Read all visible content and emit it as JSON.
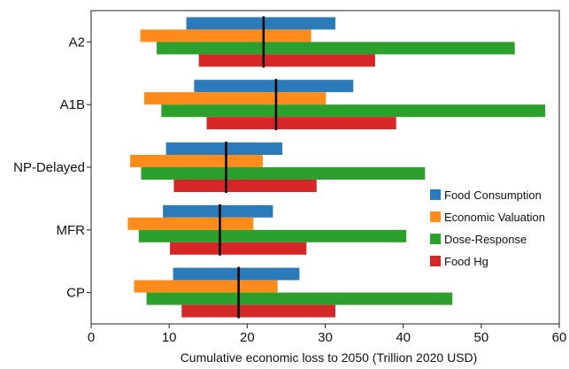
{
  "chart_data": {
    "type": "bar",
    "orientation": "horizontal-range",
    "xlabel": "Cumulative economic loss to 2050 (Trillion 2020 USD)",
    "xlim": [
      0,
      60
    ],
    "xticks": [
      "0",
      "10",
      "20",
      "30",
      "40",
      "50",
      "60"
    ],
    "categories": [
      "A2",
      "A1B",
      "NP-Delayed",
      "MFR",
      "CP"
    ],
    "series": [
      {
        "name": "Food Consumption",
        "color": "#2b7bba",
        "ranges": [
          [
            12.2,
            31.3
          ],
          [
            13.2,
            33.6
          ],
          [
            9.6,
            24.5
          ],
          [
            9.2,
            23.3
          ],
          [
            10.5,
            26.7
          ]
        ]
      },
      {
        "name": "Economic Valuation",
        "color": "#ff8c1a",
        "ranges": [
          [
            6.3,
            28.2
          ],
          [
            6.8,
            30.1
          ],
          [
            5.0,
            22.0
          ],
          [
            4.7,
            20.8
          ],
          [
            5.5,
            23.9
          ]
        ]
      },
      {
        "name": "Dose-Response",
        "color": "#2ca02c",
        "ranges": [
          [
            8.4,
            54.3
          ],
          [
            9.0,
            58.2
          ],
          [
            6.4,
            42.8
          ],
          [
            6.1,
            40.4
          ],
          [
            7.1,
            46.3
          ]
        ]
      },
      {
        "name": "Food Hg",
        "color": "#d62728",
        "ranges": [
          [
            13.8,
            36.4
          ],
          [
            14.8,
            39.1
          ],
          [
            10.6,
            28.9
          ],
          [
            10.1,
            27.6
          ],
          [
            11.6,
            31.3
          ]
        ]
      }
    ],
    "central_estimates": [
      22.1,
      23.7,
      17.3,
      16.5,
      18.9
    ],
    "legend": {
      "placement": "right",
      "entries": [
        "Food Consumption",
        "Economic Valuation",
        "Dose-Response",
        "Food Hg"
      ]
    },
    "grid": false
  }
}
